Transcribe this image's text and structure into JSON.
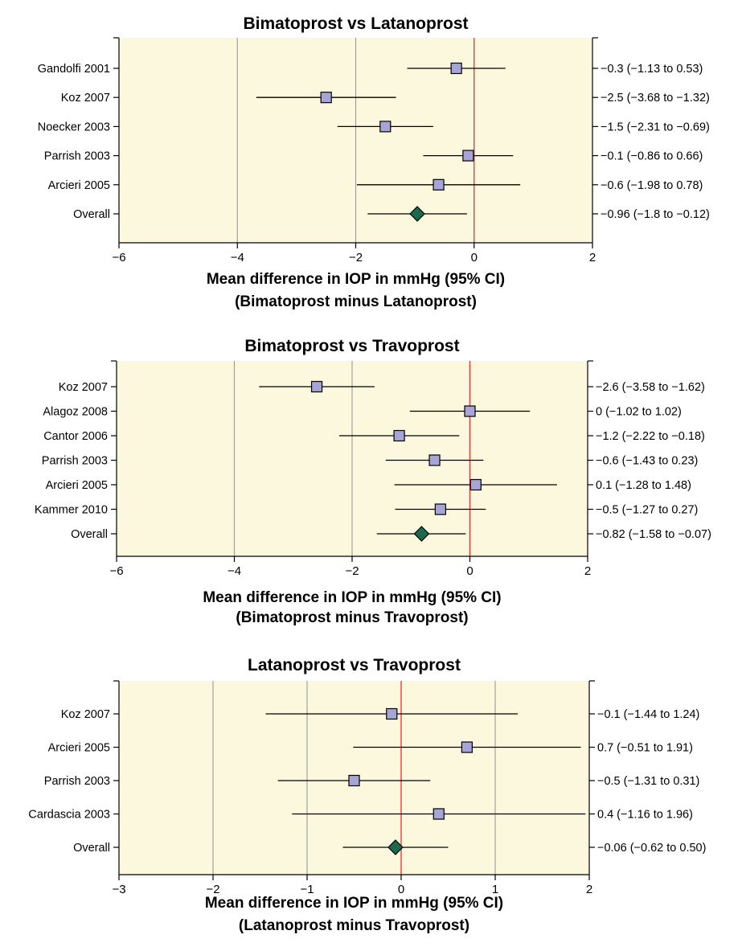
{
  "figure": {
    "panel_count": 3
  },
  "colors": {
    "panel_background": "#FBF8DE",
    "gridline": "#A0A0A0",
    "zero_line": "#E53030",
    "study_marker": "#A6A5D6",
    "overall_marker": "#1C6A4E",
    "axis": "#000000"
  },
  "chart_data": [
    {
      "type": "forest",
      "title": "Bimatoprost vs Latanoprost",
      "xlabel_line1": "Mean difference in IOP in mmHg (95% CI)",
      "xlabel_line2": "(Bimatoprost minus Latanoprost)",
      "xlim": [
        -6,
        2
      ],
      "xticks": [
        -6,
        -4,
        -2,
        0,
        2
      ],
      "xtick_labels": [
        "−6",
        "−4",
        "−2",
        "0",
        "2"
      ],
      "gridlines_at": [
        -4,
        -2
      ],
      "reference_line_at": 0,
      "rows": [
        {
          "study": "Gandolfi 2001",
          "estimate": -0.3,
          "lower": -1.13,
          "upper": 0.53,
          "ci_text": "−0.3 (−1.13 to 0.53)",
          "overall": false
        },
        {
          "study": "Koz 2007",
          "estimate": -2.5,
          "lower": -3.68,
          "upper": -1.32,
          "ci_text": "−2.5 (−3.68 to −1.32)",
          "overall": false
        },
        {
          "study": "Noecker 2003",
          "estimate": -1.5,
          "lower": -2.31,
          "upper": -0.69,
          "ci_text": "−1.5 (−2.31 to −0.69)",
          "overall": false
        },
        {
          "study": "Parrish 2003",
          "estimate": -0.1,
          "lower": -0.86,
          "upper": 0.66,
          "ci_text": "−0.1 (−0.86 to 0.66)",
          "overall": false
        },
        {
          "study": "Arcieri 2005",
          "estimate": -0.6,
          "lower": -1.98,
          "upper": 0.78,
          "ci_text": "−0.6 (−1.98 to 0.78)",
          "overall": false
        },
        {
          "study": "Overall",
          "estimate": -0.96,
          "lower": -1.8,
          "upper": -0.12,
          "ci_text": "−0.96 (−1.8 to −0.12)",
          "overall": true
        }
      ]
    },
    {
      "type": "forest",
      "title": "Bimatoprost vs Travoprost",
      "xlabel_line1": "Mean difference in IOP in mmHg (95% CI)",
      "xlabel_line2": "(Bimatoprost minus Travoprost)",
      "xlim": [
        -6,
        2
      ],
      "xticks": [
        -6,
        -4,
        -2,
        0,
        2
      ],
      "xtick_labels": [
        "−6",
        "−4",
        "−2",
        "0",
        "2"
      ],
      "gridlines_at": [
        -4,
        -2
      ],
      "reference_line_at": 0,
      "rows": [
        {
          "study": "Koz 2007",
          "estimate": -2.6,
          "lower": -3.58,
          "upper": -1.62,
          "ci_text": "−2.6 (−3.58 to −1.62)",
          "overall": false
        },
        {
          "study": "Alagoz 2008",
          "estimate": 0,
          "lower": -1.02,
          "upper": 1.02,
          "ci_text": "0 (−1.02 to 1.02)",
          "overall": false
        },
        {
          "study": "Cantor 2006",
          "estimate": -1.2,
          "lower": -2.22,
          "upper": -0.18,
          "ci_text": "−1.2 (−2.22 to −0.18)",
          "overall": false
        },
        {
          "study": "Parrish 2003",
          "estimate": -0.6,
          "lower": -1.43,
          "upper": 0.23,
          "ci_text": "−0.6 (−1.43 to 0.23)",
          "overall": false
        },
        {
          "study": "Arcieri 2005",
          "estimate": 0.1,
          "lower": -1.28,
          "upper": 1.48,
          "ci_text": "0.1 (−1.28 to 1.48)",
          "overall": false
        },
        {
          "study": "Kammer 2010",
          "estimate": -0.5,
          "lower": -1.27,
          "upper": 0.27,
          "ci_text": "−0.5 (−1.27 to 0.27)",
          "overall": false
        },
        {
          "study": "Overall",
          "estimate": -0.82,
          "lower": -1.58,
          "upper": -0.07,
          "ci_text": "−0.82 (−1.58 to −0.07)",
          "overall": true
        }
      ]
    },
    {
      "type": "forest",
      "title": "Latanoprost vs Travoprost",
      "xlabel_line1": "Mean difference in IOP in mmHg (95% CI)",
      "xlabel_line2": "(Latanoprost minus Travoprost)",
      "xlim": [
        -3,
        2
      ],
      "xticks": [
        -3,
        -2,
        -1,
        0,
        1,
        2
      ],
      "xtick_labels": [
        "−3",
        "−2",
        "−1",
        "0",
        "1",
        "2"
      ],
      "gridlines_at": [
        -2,
        -1,
        1
      ],
      "reference_line_at": 0,
      "rows": [
        {
          "study": "Koz 2007",
          "estimate": -0.1,
          "lower": -1.44,
          "upper": 1.24,
          "ci_text": "−0.1 (−1.44 to 1.24)",
          "overall": false
        },
        {
          "study": "Arcieri 2005",
          "estimate": 0.7,
          "lower": -0.51,
          "upper": 1.91,
          "ci_text": "0.7 (−0.51 to 1.91)",
          "overall": false
        },
        {
          "study": "Parrish 2003",
          "estimate": -0.5,
          "lower": -1.31,
          "upper": 0.31,
          "ci_text": "−0.5 (−1.31 to 0.31)",
          "overall": false
        },
        {
          "study": "Cardascia 2003",
          "estimate": 0.4,
          "lower": -1.16,
          "upper": 1.96,
          "ci_text": "0.4 (−1.16 to 1.96)",
          "overall": false
        },
        {
          "study": "Overall",
          "estimate": -0.06,
          "lower": -0.62,
          "upper": 0.5,
          "ci_text": "−0.06 (−0.62 to 0.50)",
          "overall": true
        }
      ]
    }
  ]
}
